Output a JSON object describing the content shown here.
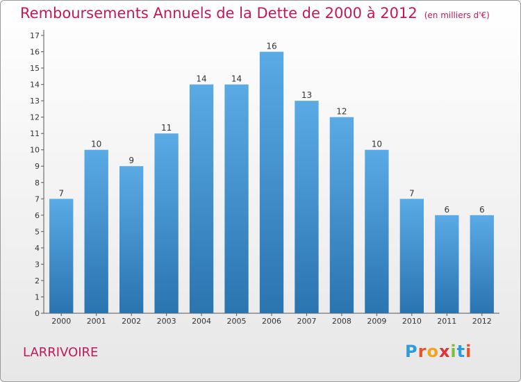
{
  "header": {
    "title": "Remboursements Annuels de la Dette de 2000 à 2012",
    "unit_note": "(en milliers d'€)"
  },
  "footer": {
    "commune": "LARRIVOIRE",
    "logo_text": "Proxiti"
  },
  "colors": {
    "title": "#c2185b",
    "bar_top": "#5aaae6",
    "bar_bottom": "#2a74b0",
    "logo": [
      "#2d9be0",
      "#e8522a",
      "#f2a31b",
      "#e2303a",
      "#7cbf3a",
      "#2d9be0",
      "#e8522a"
    ]
  },
  "chart_data": {
    "type": "bar",
    "categories": [
      "2000",
      "2001",
      "2002",
      "2003",
      "2004",
      "2005",
      "2006",
      "2007",
      "2008",
      "2009",
      "2010",
      "2011",
      "2012"
    ],
    "values": [
      7,
      10,
      9,
      11,
      14,
      14,
      16,
      13,
      12,
      10,
      7,
      6,
      6
    ],
    "yticks": [
      0,
      1,
      2,
      3,
      4,
      5,
      6,
      7,
      8,
      9,
      10,
      11,
      12,
      13,
      14,
      15,
      16,
      17
    ],
    "ylim": [
      0,
      17
    ],
    "grid": false,
    "xlabel": "",
    "ylabel": ""
  }
}
